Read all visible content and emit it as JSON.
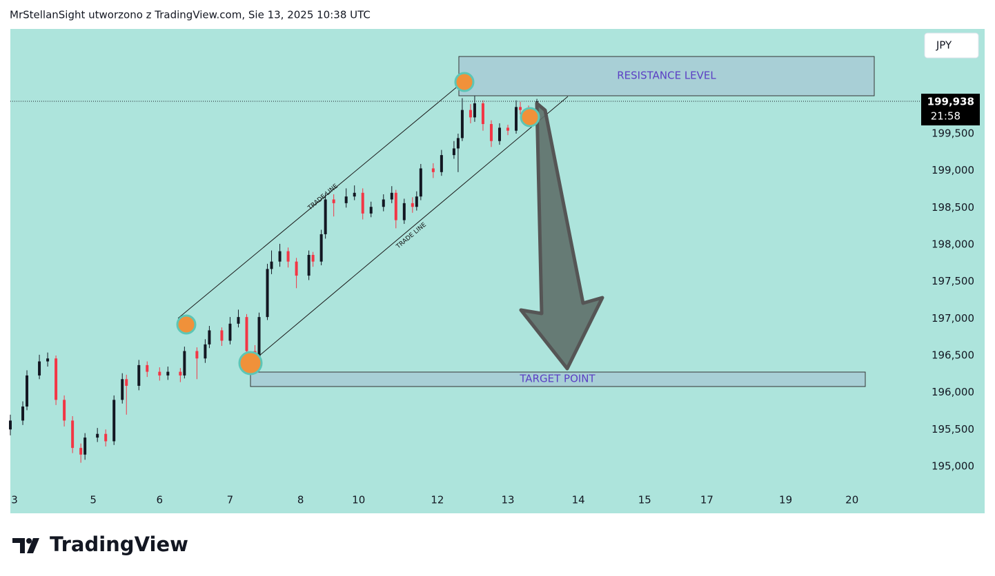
{
  "header": "MrStellanSight utworzono z TradingView.com, Sie 13, 2025 10:38 UTC",
  "logo": "TradingView",
  "chart_data": {
    "type": "candlestick",
    "currency": "JPY",
    "price_label": "199,938",
    "countdown": "21:58",
    "up_color": "#131722",
    "down_color": "#f23645",
    "background": "#ade4dc",
    "annotations": {
      "resistance": "RESISTANCE LEVEL",
      "target": "TARGET POINT",
      "trade_line_upper": "TRADE LINE",
      "trade_line_lower": "TRADE LINE"
    },
    "xlim": [
      0,
      235
    ],
    "ylim": [
      194366,
      200916
    ],
    "xticks": [
      {
        "value": 1,
        "label": "3"
      },
      {
        "value": 20,
        "label": "5"
      },
      {
        "value": 36,
        "label": "6"
      },
      {
        "value": 53,
        "label": "7"
      },
      {
        "value": 70,
        "label": "8"
      },
      {
        "value": 84,
        "label": "10"
      },
      {
        "value": 103,
        "label": "12"
      },
      {
        "value": 120,
        "label": "13"
      },
      {
        "value": 137,
        "label": "14"
      },
      {
        "value": 153,
        "label": "15"
      },
      {
        "value": 168,
        "label": "17"
      },
      {
        "value": 187,
        "label": "19"
      },
      {
        "value": 203,
        "label": "20"
      }
    ],
    "yticks": [
      {
        "value": 195000,
        "label": "195,000"
      },
      {
        "value": 195500,
        "label": "195,500"
      },
      {
        "value": 196000,
        "label": "196,000"
      },
      {
        "value": 196500,
        "label": "196,500"
      },
      {
        "value": 197000,
        "label": "197,000"
      },
      {
        "value": 197500,
        "label": "197,500"
      },
      {
        "value": 198000,
        "label": "198,000"
      },
      {
        "value": 198500,
        "label": "198,500"
      },
      {
        "value": 199000,
        "label": "199,000"
      },
      {
        "value": 199500,
        "label": "199,500"
      }
    ],
    "candles": [
      [
        0,
        195500,
        195700,
        195420,
        195620
      ],
      [
        3,
        195620,
        195880,
        195560,
        195810
      ],
      [
        4,
        195810,
        196300,
        195760,
        196230
      ],
      [
        7,
        196230,
        196510,
        196180,
        196420
      ],
      [
        9,
        196420,
        196540,
        196350,
        196460
      ],
      [
        11,
        196460,
        196500,
        195830,
        195900
      ],
      [
        13,
        195900,
        195960,
        195540,
        195620
      ],
      [
        15,
        195620,
        195680,
        195180,
        195250
      ],
      [
        17,
        195250,
        195310,
        195050,
        195160
      ],
      [
        18,
        195160,
        195450,
        195090,
        195390
      ],
      [
        21,
        195390,
        195520,
        195330,
        195440
      ],
      [
        23,
        195440,
        195500,
        195270,
        195340
      ],
      [
        25,
        195340,
        195960,
        195290,
        195900
      ],
      [
        27,
        195900,
        196260,
        195850,
        196180
      ],
      [
        28,
        196180,
        196240,
        195700,
        196090
      ],
      [
        31,
        196090,
        196440,
        196030,
        196370
      ],
      [
        33,
        196370,
        196420,
        196210,
        196280
      ],
      [
        36,
        196280,
        196340,
        196160,
        196230
      ],
      [
        38,
        196230,
        196350,
        196170,
        196280
      ],
      [
        41,
        196280,
        196330,
        196140,
        196230
      ],
      [
        42,
        196230,
        196620,
        196190,
        196560
      ],
      [
        45,
        196560,
        196610,
        196180,
        196460
      ],
      [
        47,
        196460,
        196720,
        196400,
        196650
      ],
      [
        48,
        196650,
        196900,
        196600,
        196840
      ],
      [
        51,
        196840,
        196880,
        196630,
        196700
      ],
      [
        53,
        196700,
        197020,
        196650,
        196930
      ],
      [
        55,
        196930,
        197120,
        196880,
        197020
      ],
      [
        57,
        197020,
        197060,
        196500,
        196560
      ],
      [
        59,
        196560,
        196640,
        196300,
        196370
      ],
      [
        60,
        196370,
        197080,
        196340,
        197020
      ],
      [
        62,
        197020,
        197740,
        196980,
        197670
      ],
      [
        63,
        197670,
        197920,
        197600,
        197770
      ],
      [
        65,
        197770,
        198010,
        197700,
        197910
      ],
      [
        67,
        197910,
        197960,
        197690,
        197770
      ],
      [
        69,
        197770,
        197820,
        197410,
        197580
      ],
      [
        72,
        197580,
        197920,
        197520,
        197860
      ],
      [
        73,
        197860,
        197900,
        197700,
        197770
      ],
      [
        75,
        197770,
        198200,
        197720,
        198140
      ],
      [
        76,
        198140,
        198700,
        198080,
        198610
      ],
      [
        78,
        198610,
        198680,
        198380,
        198560
      ],
      [
        81,
        198560,
        198760,
        198500,
        198650
      ],
      [
        83,
        198650,
        198800,
        198600,
        198700
      ],
      [
        85,
        198700,
        198760,
        198340,
        198420
      ],
      [
        87,
        198420,
        198580,
        198370,
        198510
      ],
      [
        90,
        198510,
        198680,
        198450,
        198610
      ],
      [
        92,
        198610,
        198790,
        198560,
        198700
      ],
      [
        93,
        198700,
        198740,
        198220,
        198330
      ],
      [
        95,
        198330,
        198620,
        198280,
        198560
      ],
      [
        97,
        198560,
        198640,
        198430,
        198510
      ],
      [
        98,
        198510,
        198720,
        198460,
        198650
      ],
      [
        99,
        198650,
        199090,
        198600,
        199030
      ],
      [
        102,
        199030,
        199100,
        198900,
        198980
      ],
      [
        104,
        198980,
        199280,
        198930,
        199210
      ],
      [
        107,
        199210,
        199400,
        199160,
        199300
      ],
      [
        108,
        199300,
        199500,
        198980,
        199440
      ],
      [
        109,
        199440,
        199980,
        199400,
        199820
      ],
      [
        111,
        199820,
        199900,
        199640,
        199720
      ],
      [
        112,
        199720,
        200050,
        199660,
        199910
      ],
      [
        114,
        199910,
        199950,
        199540,
        199630
      ],
      [
        116,
        199630,
        199680,
        199320,
        199400
      ],
      [
        118,
        199400,
        199640,
        199350,
        199580
      ],
      [
        120,
        199580,
        199620,
        199480,
        199540
      ],
      [
        122,
        199540,
        199950,
        199500,
        199860
      ],
      [
        123,
        199860,
        199930,
        199760,
        199820
      ],
      [
        125,
        199820,
        199880,
        199660,
        199720
      ],
      [
        127,
        199720,
        199970,
        199680,
        199938
      ]
    ]
  }
}
